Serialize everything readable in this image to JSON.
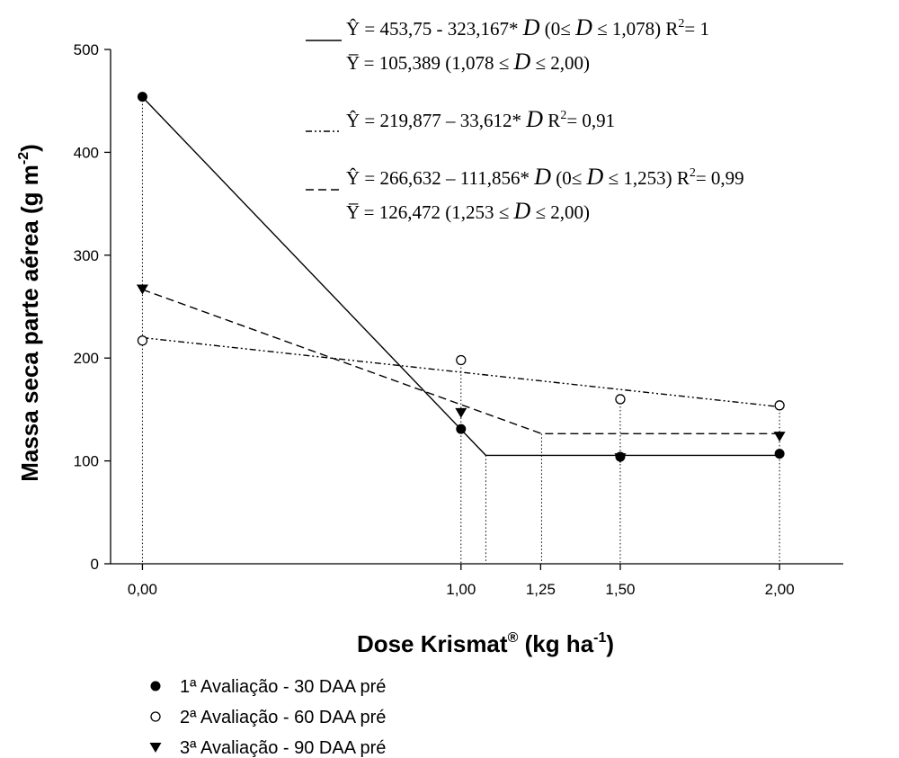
{
  "chart_data": {
    "type": "line",
    "xlabel": "Dose Krismat® (kg ha⁻¹)",
    "ylabel": "Massa seca parte aérea (g m⁻²)",
    "xlim": [
      -0.1,
      2.2
    ],
    "ylim": [
      0,
      500
    ],
    "x_ticks": [
      0,
      1,
      1.25,
      1.5,
      2
    ],
    "x_tick_labels": [
      "0,00",
      "1,00",
      "1,25",
      "1,50",
      "2,00"
    ],
    "y_ticks": [
      0,
      100,
      200,
      300,
      400,
      500
    ],
    "y_tick_labels": [
      "0",
      "100",
      "200",
      "300",
      "400",
      "500"
    ],
    "grid": false,
    "legend_position": "bottom-left",
    "series": [
      {
        "name": "1ª Avaliação - 30 DAA pré",
        "marker": "filled-circle",
        "line_style": "solid",
        "points": [
          {
            "x": 0,
            "y": 454
          },
          {
            "x": 1,
            "y": 131
          },
          {
            "x": 1.5,
            "y": 104
          },
          {
            "x": 2,
            "y": 107
          }
        ],
        "fit": [
          {
            "x": 0,
            "y": 453.75
          },
          {
            "x": 1.078,
            "y": 105.389
          },
          {
            "x": 2,
            "y": 105.389
          }
        ]
      },
      {
        "name": "2ª Avaliação - 60 DAA pré",
        "marker": "open-circle",
        "line_style": "dash-dot-dot",
        "points": [
          {
            "x": 0,
            "y": 217
          },
          {
            "x": 1,
            "y": 198
          },
          {
            "x": 1.5,
            "y": 160
          },
          {
            "x": 2,
            "y": 154
          }
        ],
        "fit": [
          {
            "x": 0,
            "y": 219.877
          },
          {
            "x": 2,
            "y": 152.653
          }
        ]
      },
      {
        "name": "3ª Avaliação - 90 DAA pré",
        "marker": "filled-triangle-down",
        "line_style": "dashed",
        "points": [
          {
            "x": 0,
            "y": 267
          },
          {
            "x": 1,
            "y": 147
          },
          {
            "x": 1.5,
            "y": 103
          },
          {
            "x": 2,
            "y": 124
          }
        ],
        "fit": [
          {
            "x": 0,
            "y": 266.632
          },
          {
            "x": 1.253,
            "y": 126.472
          },
          {
            "x": 2,
            "y": 126.472
          }
        ]
      }
    ],
    "reference_lines_x": [
      0,
      1,
      1.078,
      1.253,
      1.5,
      2
    ],
    "equations": [
      {
        "style": "solid",
        "line1": "Ŷ = 453,75 - 323,167* D  (0≤ D ≤ 1,078)  R²= 1",
        "line2": "Y̅ = 105,389  (1,078 ≤ D ≤ 2,00)"
      },
      {
        "style": "dash-dot-dot",
        "line1": "Ŷ = 219,877 – 33,612* D   R²= 0,91"
      },
      {
        "style": "dashed",
        "line1": "Ŷ = 266,632 – 111,856* D   (0≤ D ≤ 1,253) R²= 0,99",
        "line2": "Y̅ = 126,472  (1,253 ≤ D ≤ 2,00)"
      }
    ]
  }
}
